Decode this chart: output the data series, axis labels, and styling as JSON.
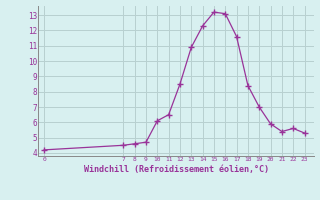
{
  "x": [
    0,
    7,
    8,
    9,
    10,
    11,
    12,
    13,
    14,
    15,
    16,
    17,
    18,
    19,
    20,
    21,
    22,
    23
  ],
  "y": [
    4.2,
    4.5,
    4.6,
    4.7,
    6.1,
    6.5,
    8.5,
    10.9,
    12.3,
    13.2,
    13.1,
    11.6,
    8.4,
    7.0,
    5.9,
    5.4,
    5.6,
    5.3
  ],
  "line_color": "#993399",
  "marker": "+",
  "bg_color": "#d8f0f0",
  "grid_color": "#b8d0d0",
  "axis_label_color": "#993399",
  "tick_label_color": "#993399",
  "xlabel": "Windchill (Refroidissement éolien,°C)",
  "ylim": [
    3.8,
    13.6
  ],
  "yticks": [
    4,
    5,
    6,
    7,
    8,
    9,
    10,
    11,
    12,
    13
  ],
  "xticks": [
    0,
    7,
    8,
    9,
    10,
    11,
    12,
    13,
    14,
    15,
    16,
    17,
    18,
    19,
    20,
    21,
    22,
    23
  ],
  "xlim": [
    -0.5,
    23.8
  ]
}
